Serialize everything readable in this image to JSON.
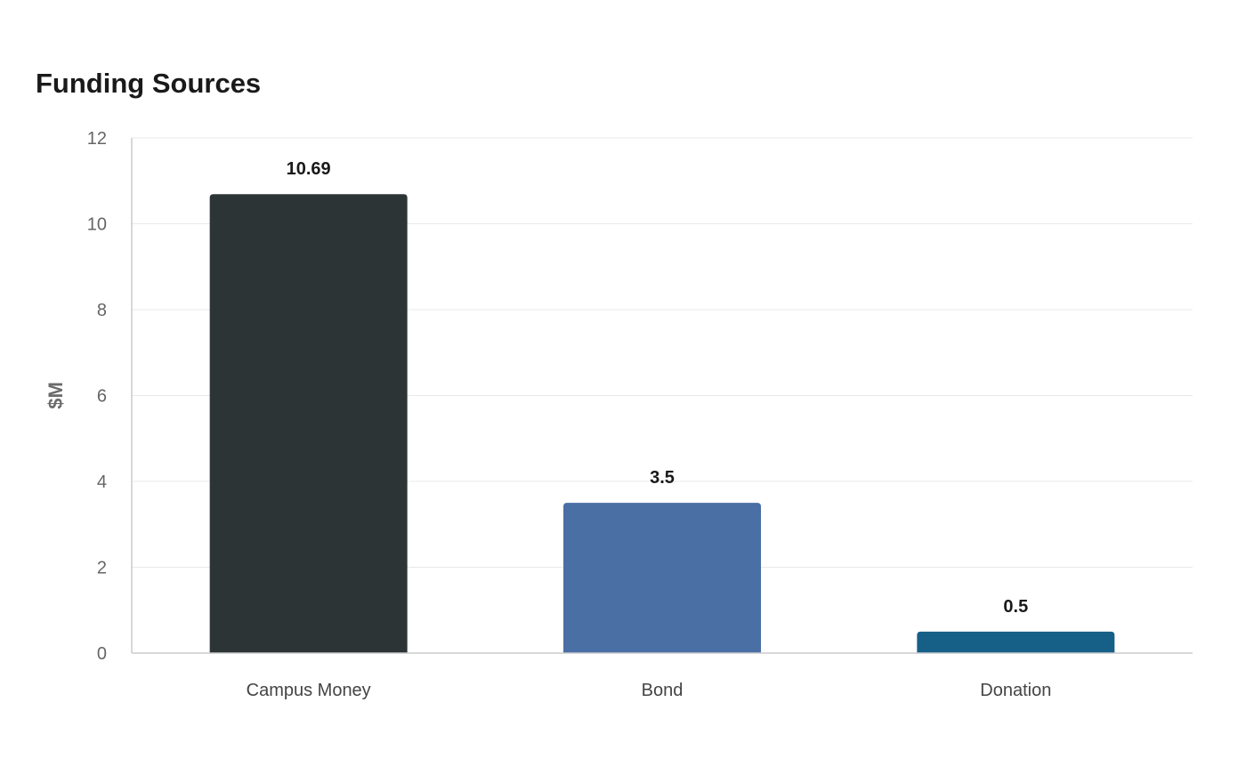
{
  "chart_data": {
    "type": "bar",
    "title": "Funding Sources",
    "xlabel": "",
    "ylabel": "$M",
    "categories": [
      "Campus Money",
      "Bond",
      "Donation"
    ],
    "values": [
      10.69,
      3.5,
      0.5
    ],
    "data_labels": [
      "10.69",
      "3.5",
      "0.5"
    ],
    "colors": [
      "#2d3436",
      "#4a6fa5",
      "#166088"
    ],
    "ylim": [
      0,
      12
    ],
    "yticks": [
      0,
      2,
      4,
      6,
      8,
      10,
      12
    ],
    "grid": true,
    "legend": "none"
  }
}
